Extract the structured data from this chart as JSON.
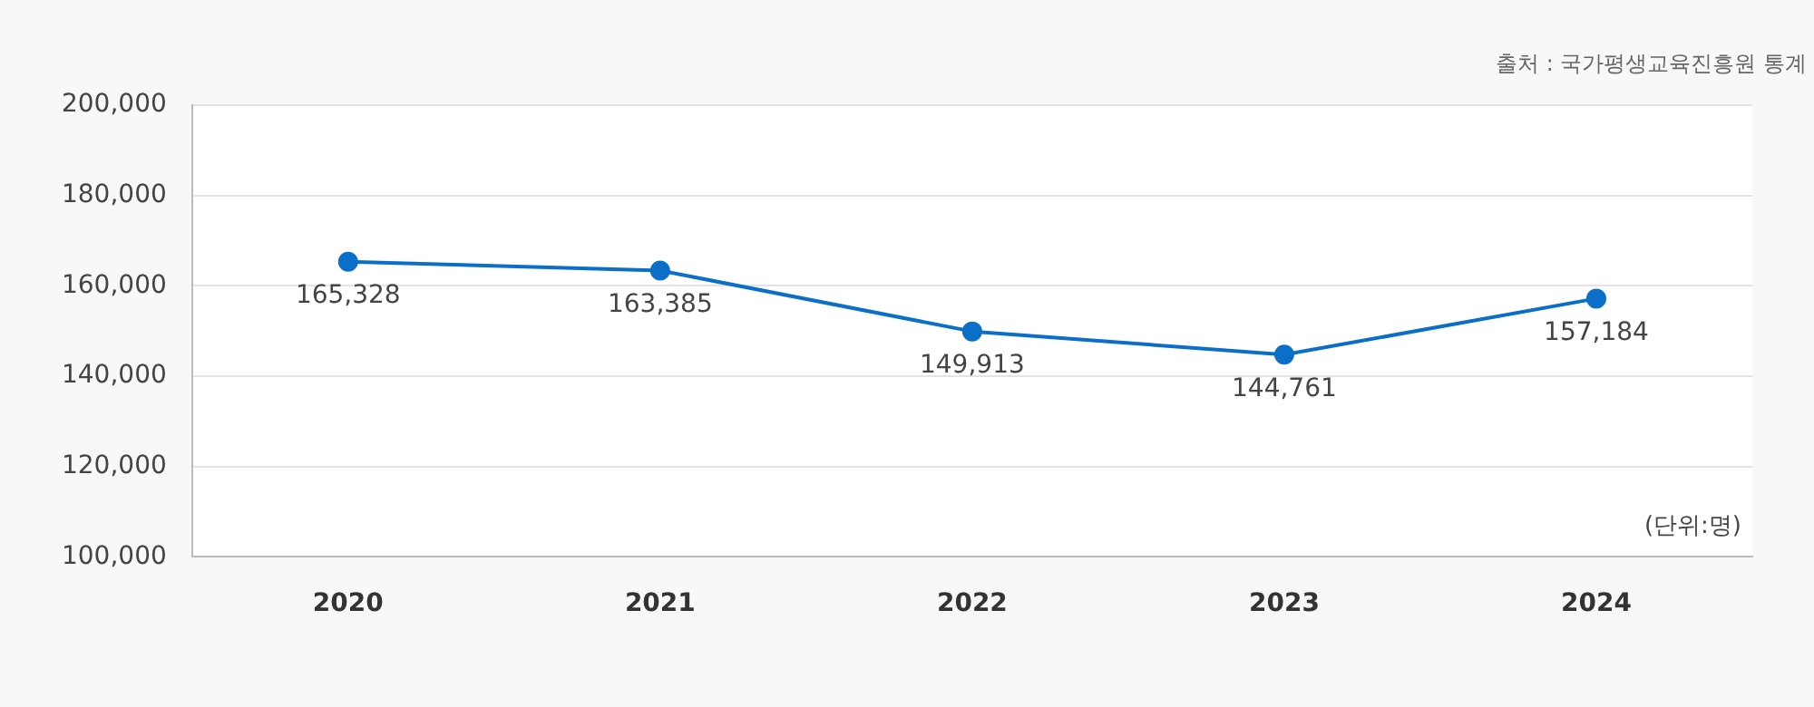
{
  "chart_data": {
    "type": "line",
    "categories": [
      "2020",
      "2021",
      "2022",
      "2023",
      "2024"
    ],
    "series": [
      {
        "color": "#0b6fc7",
        "values": [
          165328,
          163385,
          149913,
          144761,
          157184
        ],
        "value_labels": [
          "165,328",
          "163,385",
          "149,913",
          "144,761",
          "157,184"
        ]
      }
    ],
    "ylim": [
      100000,
      200000
    ],
    "yticks": [
      {
        "value": 100000,
        "label": "100,000"
      },
      {
        "value": 120000,
        "label": "120,000"
      },
      {
        "value": 140000,
        "label": "140,000"
      },
      {
        "value": 160000,
        "label": "160,000"
      },
      {
        "value": 180000,
        "label": "180,000"
      },
      {
        "value": 200000,
        "label": "200,000"
      }
    ],
    "grid": "y",
    "legend": false,
    "marker": "circle",
    "line_style": "solid",
    "annotations": [
      "출처 : 국가평생교육진흥원 통계",
      "(단위:명)"
    ]
  }
}
